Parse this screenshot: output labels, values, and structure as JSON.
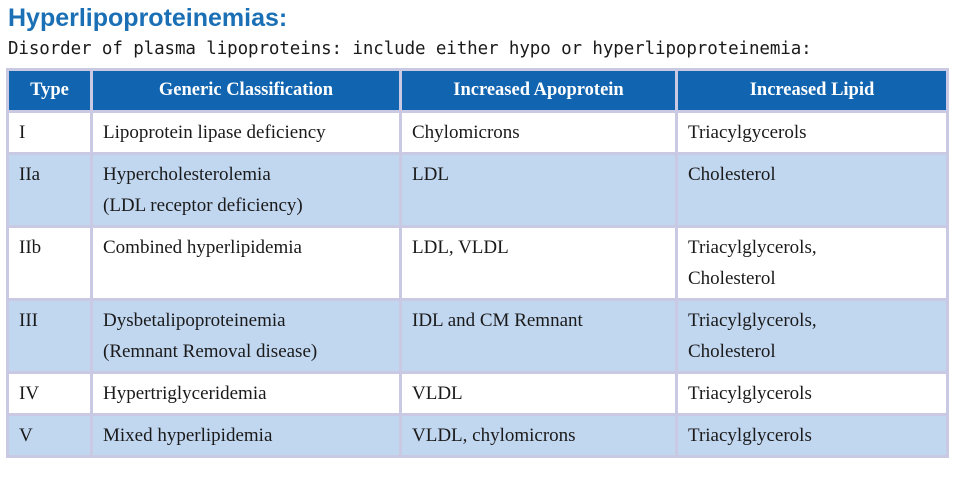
{
  "title": "Hyperlipoproteinemias:",
  "subtitle": "Disorder of plasma lipoproteins: include either hypo or hyperlipoproteinemia:",
  "table": {
    "headers": [
      "Type",
      "Generic Classification",
      "Increased Apoprotein",
      "Increased Lipid"
    ],
    "rows": [
      {
        "type": "I",
        "classification": [
          "Lipoprotein lipase deficiency"
        ],
        "apoprotein": [
          "Chylomicrons"
        ],
        "lipid": [
          "Triacylgycerols"
        ]
      },
      {
        "type": "IIa",
        "classification": [
          "Hypercholesterolemia",
          "(LDL receptor deficiency)"
        ],
        "apoprotein": [
          "LDL"
        ],
        "lipid": [
          "Cholesterol"
        ]
      },
      {
        "type": "IIb",
        "classification": [
          "Combined hyperlipidemia"
        ],
        "apoprotein": [
          "LDL, VLDL"
        ],
        "lipid": [
          "Triacylglycerols,",
          "Cholesterol"
        ]
      },
      {
        "type": "III",
        "classification": [
          "Dysbetalipoproteinemia",
          "(Remnant Removal disease)"
        ],
        "apoprotein": [
          "IDL and CM Remnant"
        ],
        "lipid": [
          "Triacylglycerols,",
          "Cholesterol"
        ]
      },
      {
        "type": "IV",
        "classification": [
          "Hypertriglyceridemia"
        ],
        "apoprotein": [
          "VLDL"
        ],
        "lipid": [
          "Triacylglycerols"
        ]
      },
      {
        "type": "V",
        "classification": [
          "Mixed hyperlipidemia"
        ],
        "apoprotein": [
          "VLDL, chylomicrons"
        ],
        "lipid": [
          "Triacylglycerols"
        ]
      }
    ]
  },
  "colors": {
    "title": "#1a6fb5",
    "header_bg": "#1164b0",
    "row_shade": "#c1d6ef",
    "grid": "#c9c9e4"
  }
}
